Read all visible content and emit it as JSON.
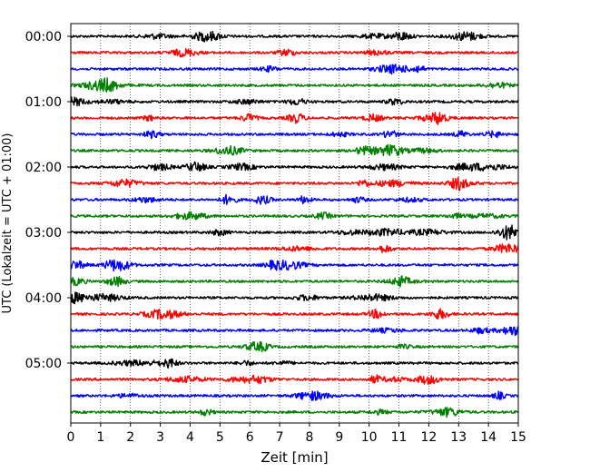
{
  "chart_data": {
    "type": "line",
    "title": "",
    "xlabel": "Zeit  [min]",
    "ylabel": "UTC (Lokalzeit = UTC + 01:00)",
    "xlim": [
      0,
      15
    ],
    "x_ticks": [
      0,
      1,
      2,
      3,
      4,
      5,
      6,
      7,
      8,
      9,
      10,
      11,
      12,
      13,
      14,
      15
    ],
    "y_tick_labels": [
      "00:00",
      "01:00",
      "02:00",
      "03:00",
      "04:00",
      "05:00"
    ],
    "trace_interval_min": 15,
    "trace_count": 24,
    "trace_colors": [
      "#000000",
      "#ff0000",
      "#0000ff",
      "#008000"
    ],
    "grid": "vertical-dotted",
    "legend": "none"
  }
}
